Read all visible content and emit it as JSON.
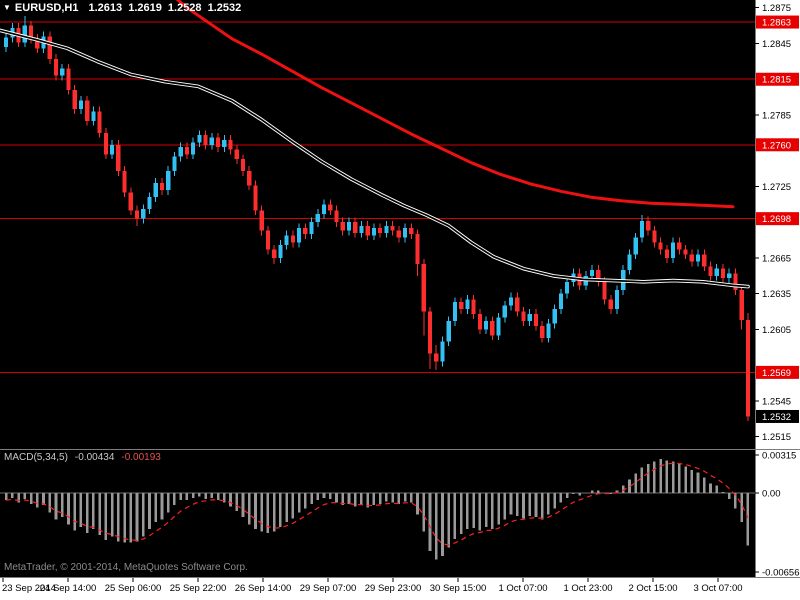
{
  "title_bar": {
    "symbol_period": "EURUSD,H1",
    "ohlc": "1.2613 1.2619 1.2528 1.2532"
  },
  "indicator_label": {
    "name": "MACD(5,34,5)",
    "macd_value": "-0.00434",
    "signal_value": "-0.00193"
  },
  "watermark": "MetaTrader, © 2001-2014, MetaQuotes Software Corp.",
  "icons": {
    "symbol_marker": "▼"
  },
  "colors": {
    "background": "#000000",
    "axis_bg": "#ffffff",
    "axis_text": "#000000",
    "bull": "#33c1f3",
    "bear": "#ff2e2e",
    "level_line": "#d40000",
    "level_label_bg": "#e60000",
    "current_label_bg": "#000000",
    "ma_fast": "#000000",
    "ma_fast_halo": "#ffffff",
    "ma_slow": "#ee1111",
    "histogram": "#9a9a9a",
    "signal": "#ff2020",
    "zero_line": "#6f6f6f",
    "divider": "#7d7d7d",
    "title_text": "#ffffff",
    "indicator_text": "#c8c8c8",
    "signal_value_text": "#e0524d",
    "watermark_text": "#8c8c8c"
  },
  "chart_data": [
    {
      "type": "candlestick",
      "symbol": "EURUSD",
      "timeframe": "H1",
      "current_bar": {
        "open": 1.2613,
        "high": 1.2619,
        "low": 1.2528,
        "close": 1.2532
      },
      "price_scale": 0.0001,
      "ylim": [
        1.25047,
        1.28815
      ],
      "grid": false,
      "x_labels": [
        "23 Sep 2014",
        "24 Sep 14:00",
        "25 Sep 06:00",
        "25 Sep 22:00",
        "26 Sep 14:00",
        "29 Sep 07:00",
        "29 Sep 23:00",
        "30 Sep 15:00",
        "1 Oct 07:00",
        "1 Oct 23:00",
        "2 Oct 15:00",
        "3 Oct 07:00"
      ],
      "price_axis_ticks": [
        1.2875,
        1.2845,
        1.2785,
        1.2725,
        1.2665,
        1.2635,
        1.2605,
        1.2545,
        1.2515
      ],
      "level_lines": [
        1.2863,
        1.2815,
        1.276,
        1.2698,
        1.2569
      ],
      "level_labels": [
        {
          "value": 1.2863,
          "style": "red"
        },
        {
          "value": 1.2815,
          "style": "red"
        },
        {
          "value": 1.276,
          "style": "red"
        },
        {
          "value": 1.2698,
          "style": "red"
        },
        {
          "value": 1.2569,
          "style": "red"
        },
        {
          "value": 1.2532,
          "style": "current"
        }
      ],
      "candles_ohlc": [
        [
          12842,
          12854,
          12838,
          12850
        ],
        [
          12850,
          12862,
          12846,
          12858
        ],
        [
          12858,
          12862,
          12842,
          12846
        ],
        [
          12846,
          12868,
          12842,
          12860
        ],
        [
          12860,
          12864,
          12845,
          12849
        ],
        [
          12849,
          12853,
          12837,
          12841
        ],
        [
          12841,
          12855,
          12837,
          12851
        ],
        [
          12851,
          12855,
          12828,
          12832
        ],
        [
          12832,
          12836,
          12814,
          12818
        ],
        [
          12818,
          12828,
          12814,
          12824
        ],
        [
          12824,
          12828,
          12802,
          12806
        ],
        [
          12806,
          12810,
          12786,
          12790
        ],
        [
          12790,
          12801,
          12786,
          12797
        ],
        [
          12797,
          12801,
          12776,
          12780
        ],
        [
          12780,
          12792,
          12776,
          12788
        ],
        [
          12788,
          12792,
          12766,
          12770
        ],
        [
          12770,
          12774,
          12748,
          12752
        ],
        [
          12752,
          12764,
          12748,
          12760
        ],
        [
          12760,
          12764,
          12734,
          12738
        ],
        [
          12738,
          12742,
          12716,
          12720
        ],
        [
          12720,
          12724,
          12701,
          12705
        ],
        [
          12705,
          12709,
          12692,
          12698
        ],
        [
          12698,
          12710,
          12694,
          12706
        ],
        [
          12706,
          12720,
          12702,
          12716
        ],
        [
          12716,
          12732,
          12712,
          12728
        ],
        [
          12728,
          12732,
          12718,
          12722
        ],
        [
          12722,
          12742,
          12718,
          12738
        ],
        [
          12738,
          12754,
          12734,
          12750
        ],
        [
          12750,
          12762,
          12746,
          12758
        ],
        [
          12758,
          12762,
          12748,
          12752
        ],
        [
          12752,
          12766,
          12748,
          12762
        ],
        [
          12762,
          12772,
          12758,
          12768
        ],
        [
          12768,
          12772,
          12756,
          12760
        ],
        [
          12760,
          12770,
          12756,
          12766
        ],
        [
          12766,
          12770,
          12754,
          12758
        ],
        [
          12758,
          12768,
          12754,
          12764
        ],
        [
          12764,
          12768,
          12752,
          12756
        ],
        [
          12756,
          12760,
          12744,
          12748
        ],
        [
          12748,
          12752,
          12734,
          12738
        ],
        [
          12738,
          12742,
          12722,
          12726
        ],
        [
          12726,
          12730,
          12701,
          12705
        ],
        [
          12705,
          12709,
          12684,
          12688
        ],
        [
          12688,
          12692,
          12668,
          12672
        ],
        [
          12672,
          12676,
          12660,
          12665
        ],
        [
          12665,
          12680,
          12661,
          12676
        ],
        [
          12676,
          12688,
          12672,
          12684
        ],
        [
          12684,
          12688,
          12674,
          12678
        ],
        [
          12678,
          12694,
          12674,
          12690
        ],
        [
          12690,
          12694,
          12681,
          12685
        ],
        [
          12685,
          12699,
          12681,
          12695
        ],
        [
          12695,
          12706,
          12691,
          12702
        ],
        [
          12702,
          12714,
          12698,
          12710
        ],
        [
          12710,
          12714,
          12701,
          12705
        ],
        [
          12705,
          12709,
          12691,
          12695
        ],
        [
          12695,
          12699,
          12684,
          12688
        ],
        [
          12688,
          12699,
          12684,
          12695
        ],
        [
          12695,
          12699,
          12682,
          12686
        ],
        [
          12686,
          12696,
          12682,
          12692
        ],
        [
          12692,
          12696,
          12680,
          12684
        ],
        [
          12684,
          12694,
          12680,
          12690
        ],
        [
          12690,
          12694,
          12682,
          12686
        ],
        [
          12686,
          12696,
          12682,
          12692
        ],
        [
          12692,
          12696,
          12684,
          12688
        ],
        [
          12688,
          12692,
          12678,
          12682
        ],
        [
          12682,
          12694,
          12678,
          12690
        ],
        [
          12690,
          12694,
          12681,
          12685
        ],
        [
          12685,
          12689,
          12650,
          12660
        ],
        [
          12660,
          12664,
          12600,
          12620
        ],
        [
          12620,
          12624,
          12572,
          12585
        ],
        [
          12585,
          12592,
          12571,
          12578
        ],
        [
          12578,
          12599,
          12574,
          12595
        ],
        [
          12595,
          12616,
          12591,
          12612
        ],
        [
          12612,
          12632,
          12608,
          12628
        ],
        [
          12628,
          12632,
          12618,
          12622
        ],
        [
          12622,
          12634,
          12618,
          12630
        ],
        [
          12630,
          12634,
          12614,
          12618
        ],
        [
          12618,
          12622,
          12601,
          12605
        ],
        [
          12605,
          12616,
          12601,
          12612
        ],
        [
          12612,
          12616,
          12596,
          12600
        ],
        [
          12600,
          12619,
          12596,
          12615
        ],
        [
          12615,
          12629,
          12611,
          12625
        ],
        [
          12625,
          12636,
          12621,
          12632
        ],
        [
          12632,
          12636,
          12616,
          12620
        ],
        [
          12620,
          12624,
          12608,
          12612
        ],
        [
          12612,
          12622,
          12608,
          12618
        ],
        [
          12618,
          12622,
          12604,
          12608
        ],
        [
          12608,
          12612,
          12594,
          12598
        ],
        [
          12598,
          12614,
          12594,
          12610
        ],
        [
          12610,
          12626,
          12606,
          12622
        ],
        [
          12622,
          12639,
          12618,
          12635
        ],
        [
          12635,
          12649,
          12631,
          12645
        ],
        [
          12645,
          12656,
          12641,
          12652
        ],
        [
          12652,
          12656,
          12638,
          12642
        ],
        [
          12642,
          12654,
          12638,
          12650
        ],
        [
          12650,
          12659,
          12646,
          12655
        ],
        [
          12655,
          12659,
          12641,
          12645
        ],
        [
          12645,
          12649,
          12626,
          12630
        ],
        [
          12630,
          12634,
          12618,
          12622
        ],
        [
          12622,
          12642,
          12618,
          12638
        ],
        [
          12638,
          12659,
          12634,
          12655
        ],
        [
          12655,
          12672,
          12651,
          12668
        ],
        [
          12668,
          12686,
          12664,
          12682
        ],
        [
          12682,
          12701,
          12678,
          12696
        ],
        [
          12696,
          12700,
          12684,
          12688
        ],
        [
          12688,
          12692,
          12674,
          12678
        ],
        [
          12678,
          12682,
          12668,
          12672
        ],
        [
          12672,
          12676,
          12661,
          12665
        ],
        [
          12665,
          12682,
          12661,
          12678
        ],
        [
          12678,
          12682,
          12668,
          12672
        ],
        [
          12672,
          12676,
          12664,
          12668
        ],
        [
          12668,
          12672,
          12658,
          12662
        ],
        [
          12662,
          12672,
          12658,
          12668
        ],
        [
          12668,
          12672,
          12654,
          12658
        ],
        [
          12658,
          12662,
          12646,
          12650
        ],
        [
          12650,
          12660,
          12646,
          12656
        ],
        [
          12656,
          12660,
          12644,
          12648
        ],
        [
          12648,
          12656,
          12644,
          12652
        ],
        [
          12652,
          12656,
          12634,
          12638
        ],
        [
          12638,
          12642,
          12605,
          12613
        ],
        [
          12613,
          12619,
          12528,
          12532
        ]
      ],
      "ma_overlays": [
        {
          "name": "ma-fast-black",
          "color": "#000000",
          "halo": "#ffffff",
          "width": 1.7,
          "points": [
            [
              0,
              1.2856
            ],
            [
              0.05,
              1.2848
            ],
            [
              0.09,
              1.2841
            ],
            [
              0.13,
              1.283
            ],
            [
              0.175,
              1.2819
            ],
            [
              0.22,
              1.2813
            ],
            [
              0.265,
              1.2809
            ],
            [
              0.31,
              1.2797
            ],
            [
              0.35,
              1.2781
            ],
            [
              0.39,
              1.2763
            ],
            [
              0.43,
              1.2746
            ],
            [
              0.47,
              1.2731
            ],
            [
              0.51,
              1.2718
            ],
            [
              0.54,
              1.2709
            ],
            [
              0.57,
              1.2701
            ],
            [
              0.6,
              1.2692
            ],
            [
              0.63,
              1.2678
            ],
            [
              0.66,
              1.2666
            ],
            [
              0.7,
              1.2656
            ],
            [
              0.74,
              1.265
            ],
            [
              0.78,
              1.2647
            ],
            [
              0.82,
              1.2646
            ],
            [
              0.86,
              1.2645
            ],
            [
              0.9,
              1.2646
            ],
            [
              0.94,
              1.2645
            ],
            [
              0.98,
              1.2642
            ],
            [
              1.0,
              1.2641
            ]
          ]
        },
        {
          "name": "ma-slow-red",
          "color": "#ee1111",
          "width": 3,
          "points": [
            [
              0.235,
              1.2883
            ],
            [
              0.25,
              1.2875
            ],
            [
              0.28,
              1.2862
            ],
            [
              0.31,
              1.2849
            ],
            [
              0.35,
              1.2836
            ],
            [
              0.39,
              1.2822
            ],
            [
              0.43,
              1.2808
            ],
            [
              0.47,
              1.2795
            ],
            [
              0.51,
              1.2782
            ],
            [
              0.55,
              1.2769
            ],
            [
              0.59,
              1.2757
            ],
            [
              0.63,
              1.2745
            ],
            [
              0.67,
              1.2735
            ],
            [
              0.71,
              1.2727
            ],
            [
              0.75,
              1.2721
            ],
            [
              0.79,
              1.2716
            ],
            [
              0.83,
              1.2713
            ],
            [
              0.87,
              1.2711
            ],
            [
              0.91,
              1.271
            ],
            [
              0.95,
              1.2709
            ],
            [
              0.98,
              1.2708
            ]
          ]
        }
      ]
    },
    {
      "type": "bar",
      "title": "MACD(5,34,5)",
      "ylim": [
        -0.00696,
        0.00356
      ],
      "zero_line": 0,
      "signal_period": 5,
      "current_values": {
        "macd": -0.00434,
        "signal": -0.00193
      },
      "y_ticks": [
        {
          "label": "0.00315",
          "value": 0.00315
        },
        {
          "label": "0.00",
          "value": 0
        },
        {
          "label": "-0.00656",
          "value": -0.00656
        }
      ],
      "values": [
        -0.0006,
        -0.0004,
        -0.0008,
        -0.0005,
        -0.0009,
        -0.0012,
        -0.001,
        -0.0016,
        -0.0022,
        -0.002,
        -0.0026,
        -0.0031,
        -0.0028,
        -0.0033,
        -0.003,
        -0.0035,
        -0.0039,
        -0.0036,
        -0.004,
        -0.0041,
        -0.0041,
        -0.004,
        -0.0036,
        -0.003,
        -0.0024,
        -0.0022,
        -0.0016,
        -0.001,
        -0.0006,
        -0.0006,
        -0.0004,
        -0.0003,
        -0.0005,
        -0.0004,
        -0.0006,
        -0.0008,
        -0.0011,
        -0.0015,
        -0.002,
        -0.0026,
        -0.003,
        -0.0032,
        -0.0033,
        -0.0032,
        -0.0028,
        -0.0024,
        -0.0021,
        -0.0016,
        -0.0013,
        -0.0009,
        -0.0006,
        -0.0004,
        -0.0005,
        -0.0008,
        -0.001,
        -0.0009,
        -0.0011,
        -0.001,
        -0.0012,
        -0.001,
        -0.0009,
        -0.0007,
        -0.0008,
        -0.0009,
        -0.0007,
        -0.0008,
        -0.0018,
        -0.0032,
        -0.0048,
        -0.0055,
        -0.0052,
        -0.0045,
        -0.0038,
        -0.0034,
        -0.003,
        -0.0029,
        -0.0031,
        -0.0028,
        -0.003,
        -0.0026,
        -0.0022,
        -0.0018,
        -0.0019,
        -0.0021,
        -0.0019,
        -0.002,
        -0.0022,
        -0.0018,
        -0.0013,
        -0.0008,
        -0.0004,
        -0.0001,
        -0.0002,
        0.0,
        0.0002,
        0.0002,
        0.0,
        -0.0001,
        0.0002,
        0.0006,
        0.0011,
        0.0016,
        0.0021,
        0.0024,
        0.0026,
        0.0028,
        0.0027,
        0.0026,
        0.0024,
        0.0022,
        0.0019,
        0.0017,
        0.0013,
        0.0008,
        0.0006,
        0.0001,
        -0.0005,
        -0.0013,
        -0.0024,
        -0.00434
      ]
    }
  ]
}
